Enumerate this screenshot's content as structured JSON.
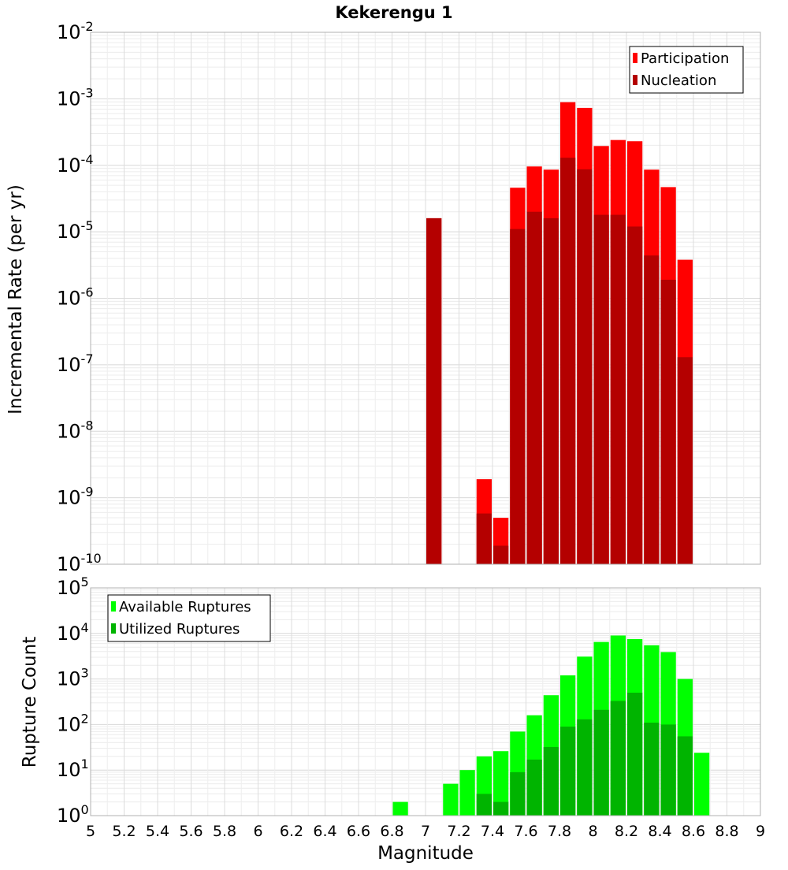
{
  "chart_data": [
    {
      "type": "bar",
      "title": "Kekerengu 1",
      "ylabel": "Incremental Rate (per yr)",
      "yscale": "log",
      "ylim_exponents": [
        -10,
        -2
      ],
      "xlim": [
        5,
        9
      ],
      "bar_width": 0.1,
      "legend_position": "top-right",
      "x": [
        7.05,
        7.35,
        7.45,
        7.55,
        7.65,
        7.75,
        7.85,
        7.95,
        8.05,
        8.15,
        8.25,
        8.35,
        8.45,
        8.55
      ],
      "series": [
        {
          "name": "Participation",
          "color": "#ff0000",
          "values": [
            1.6e-05,
            1.9e-09,
            5e-10,
            4.6e-05,
            9.6e-05,
            8.6e-05,
            0.00089,
            0.00073,
            0.000195,
            0.00024,
            0.00023,
            8.6e-05,
            4.7e-05,
            3.8e-06
          ]
        },
        {
          "name": "Nucleation",
          "color": "#b40000",
          "values": [
            1.6e-05,
            5.8e-10,
            1.9e-10,
            1.1e-05,
            2e-05,
            1.6e-05,
            0.00013,
            8.7e-05,
            1.8e-05,
            1.8e-05,
            1.2e-05,
            4.4e-06,
            1.9e-06,
            1.3e-07
          ]
        }
      ]
    },
    {
      "type": "bar",
      "xlabel": "Magnitude",
      "ylabel": "Rupture Count",
      "yscale": "log",
      "ylim_exponents": [
        0,
        5
      ],
      "xlim": [
        5,
        9
      ],
      "bar_width": 0.1,
      "legend_position": "top-left",
      "x": [
        6.85,
        7.05,
        7.15,
        7.25,
        7.35,
        7.45,
        7.55,
        7.65,
        7.75,
        7.85,
        7.95,
        8.05,
        8.15,
        8.25,
        8.35,
        8.45,
        8.55,
        8.65
      ],
      "series": [
        {
          "name": "Available Ruptures",
          "color": "#00ff00",
          "values": [
            2,
            1,
            5,
            10,
            20,
            26,
            70,
            160,
            440,
            1200,
            3100,
            6500,
            9000,
            7500,
            5500,
            3900,
            1000,
            24
          ]
        },
        {
          "name": "Utilized Ruptures",
          "color": "#00b400",
          "values": [
            0,
            1,
            1,
            0,
            3,
            2,
            9,
            17,
            32,
            90,
            130,
            210,
            330,
            500,
            110,
            100,
            55,
            0
          ]
        }
      ]
    }
  ],
  "x_tick_labels": [
    "5",
    "5.2",
    "5.4",
    "5.6",
    "5.8",
    "6",
    "6.2",
    "6.4",
    "6.6",
    "6.8",
    "7",
    "7.2",
    "7.4",
    "7.6",
    "7.8",
    "8",
    "8.2",
    "8.4",
    "8.6",
    "8.8",
    "9"
  ],
  "top_y_ticks": [
    {
      "base": "10",
      "exp": "-10"
    },
    {
      "base": "10",
      "exp": "-9"
    },
    {
      "base": "10",
      "exp": "-8"
    },
    {
      "base": "10",
      "exp": "-7"
    },
    {
      "base": "10",
      "exp": "-6"
    },
    {
      "base": "10",
      "exp": "-5"
    },
    {
      "base": "10",
      "exp": "-4"
    },
    {
      "base": "10",
      "exp": "-3"
    },
    {
      "base": "10",
      "exp": "-2"
    }
  ],
  "bottom_y_ticks": [
    {
      "base": "10",
      "exp": "0"
    },
    {
      "base": "10",
      "exp": "1"
    },
    {
      "base": "10",
      "exp": "2"
    },
    {
      "base": "10",
      "exp": "3"
    },
    {
      "base": "10",
      "exp": "4"
    },
    {
      "base": "10",
      "exp": "5"
    }
  ]
}
